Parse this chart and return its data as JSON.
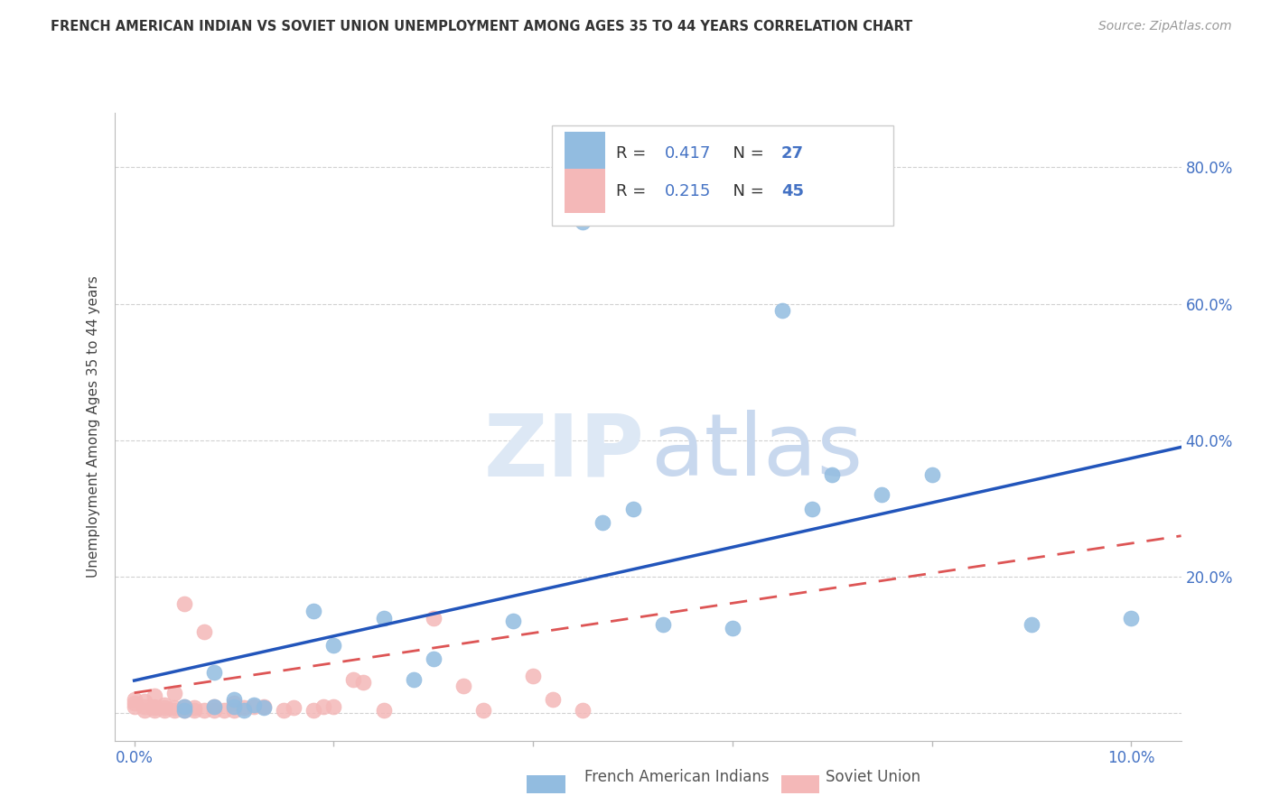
{
  "title": "FRENCH AMERICAN INDIAN VS SOVIET UNION UNEMPLOYMENT AMONG AGES 35 TO 44 YEARS CORRELATION CHART",
  "source": "Source: ZipAtlas.com",
  "ylabel_label": "Unemployment Among Ages 35 to 44 years",
  "x_ticks": [
    0.0,
    0.02,
    0.04,
    0.06,
    0.08,
    0.1
  ],
  "y_ticks": [
    0.0,
    0.2,
    0.4,
    0.6,
    0.8
  ],
  "xlim": [
    -0.002,
    0.105
  ],
  "ylim": [
    -0.04,
    0.88
  ],
  "blue_R": "0.417",
  "blue_N": "27",
  "pink_R": "0.215",
  "pink_N": "45",
  "legend_label_blue": "French American Indians",
  "legend_label_pink": "Soviet Union",
  "blue_scatter_x": [
    0.005,
    0.005,
    0.008,
    0.008,
    0.01,
    0.01,
    0.011,
    0.012,
    0.013,
    0.018,
    0.02,
    0.025,
    0.028,
    0.03,
    0.038,
    0.045,
    0.047,
    0.05,
    0.053,
    0.06,
    0.065,
    0.068,
    0.07,
    0.075,
    0.08,
    0.09,
    0.1
  ],
  "blue_scatter_y": [
    0.005,
    0.01,
    0.01,
    0.06,
    0.01,
    0.02,
    0.005,
    0.012,
    0.008,
    0.15,
    0.1,
    0.14,
    0.05,
    0.08,
    0.135,
    0.72,
    0.28,
    0.3,
    0.13,
    0.125,
    0.59,
    0.3,
    0.35,
    0.32,
    0.35,
    0.13,
    0.14
  ],
  "pink_scatter_x": [
    0.0,
    0.0,
    0.0,
    0.001,
    0.001,
    0.001,
    0.002,
    0.002,
    0.002,
    0.002,
    0.003,
    0.003,
    0.003,
    0.004,
    0.004,
    0.004,
    0.005,
    0.005,
    0.005,
    0.006,
    0.006,
    0.007,
    0.007,
    0.008,
    0.008,
    0.009,
    0.01,
    0.01,
    0.011,
    0.012,
    0.013,
    0.015,
    0.016,
    0.018,
    0.019,
    0.02,
    0.022,
    0.023,
    0.025,
    0.03,
    0.033,
    0.035,
    0.04,
    0.042,
    0.045
  ],
  "pink_scatter_y": [
    0.01,
    0.015,
    0.02,
    0.005,
    0.01,
    0.018,
    0.005,
    0.008,
    0.01,
    0.025,
    0.005,
    0.008,
    0.012,
    0.005,
    0.008,
    0.03,
    0.005,
    0.01,
    0.16,
    0.005,
    0.008,
    0.005,
    0.12,
    0.005,
    0.01,
    0.005,
    0.005,
    0.015,
    0.008,
    0.01,
    0.01,
    0.005,
    0.008,
    0.005,
    0.01,
    0.01,
    0.05,
    0.045,
    0.005,
    0.14,
    0.04,
    0.005,
    0.055,
    0.02,
    0.005
  ],
  "blue_line_x": [
    0.0,
    0.105
  ],
  "blue_line_y": [
    0.048,
    0.39
  ],
  "pink_line_x": [
    0.0,
    0.105
  ],
  "pink_line_y": [
    0.03,
    0.26
  ],
  "bg_color": "#ffffff",
  "blue_color": "#92bce0",
  "pink_color": "#f4b8b8",
  "blue_line_color": "#2255bb",
  "pink_line_color": "#dd5555",
  "grid_color": "#cccccc",
  "title_color": "#333333",
  "axis_label_color": "#444444",
  "tick_color": "#4472c4",
  "watermark_zip_color": "#dde8f5",
  "watermark_atlas_color": "#c8d8ee"
}
